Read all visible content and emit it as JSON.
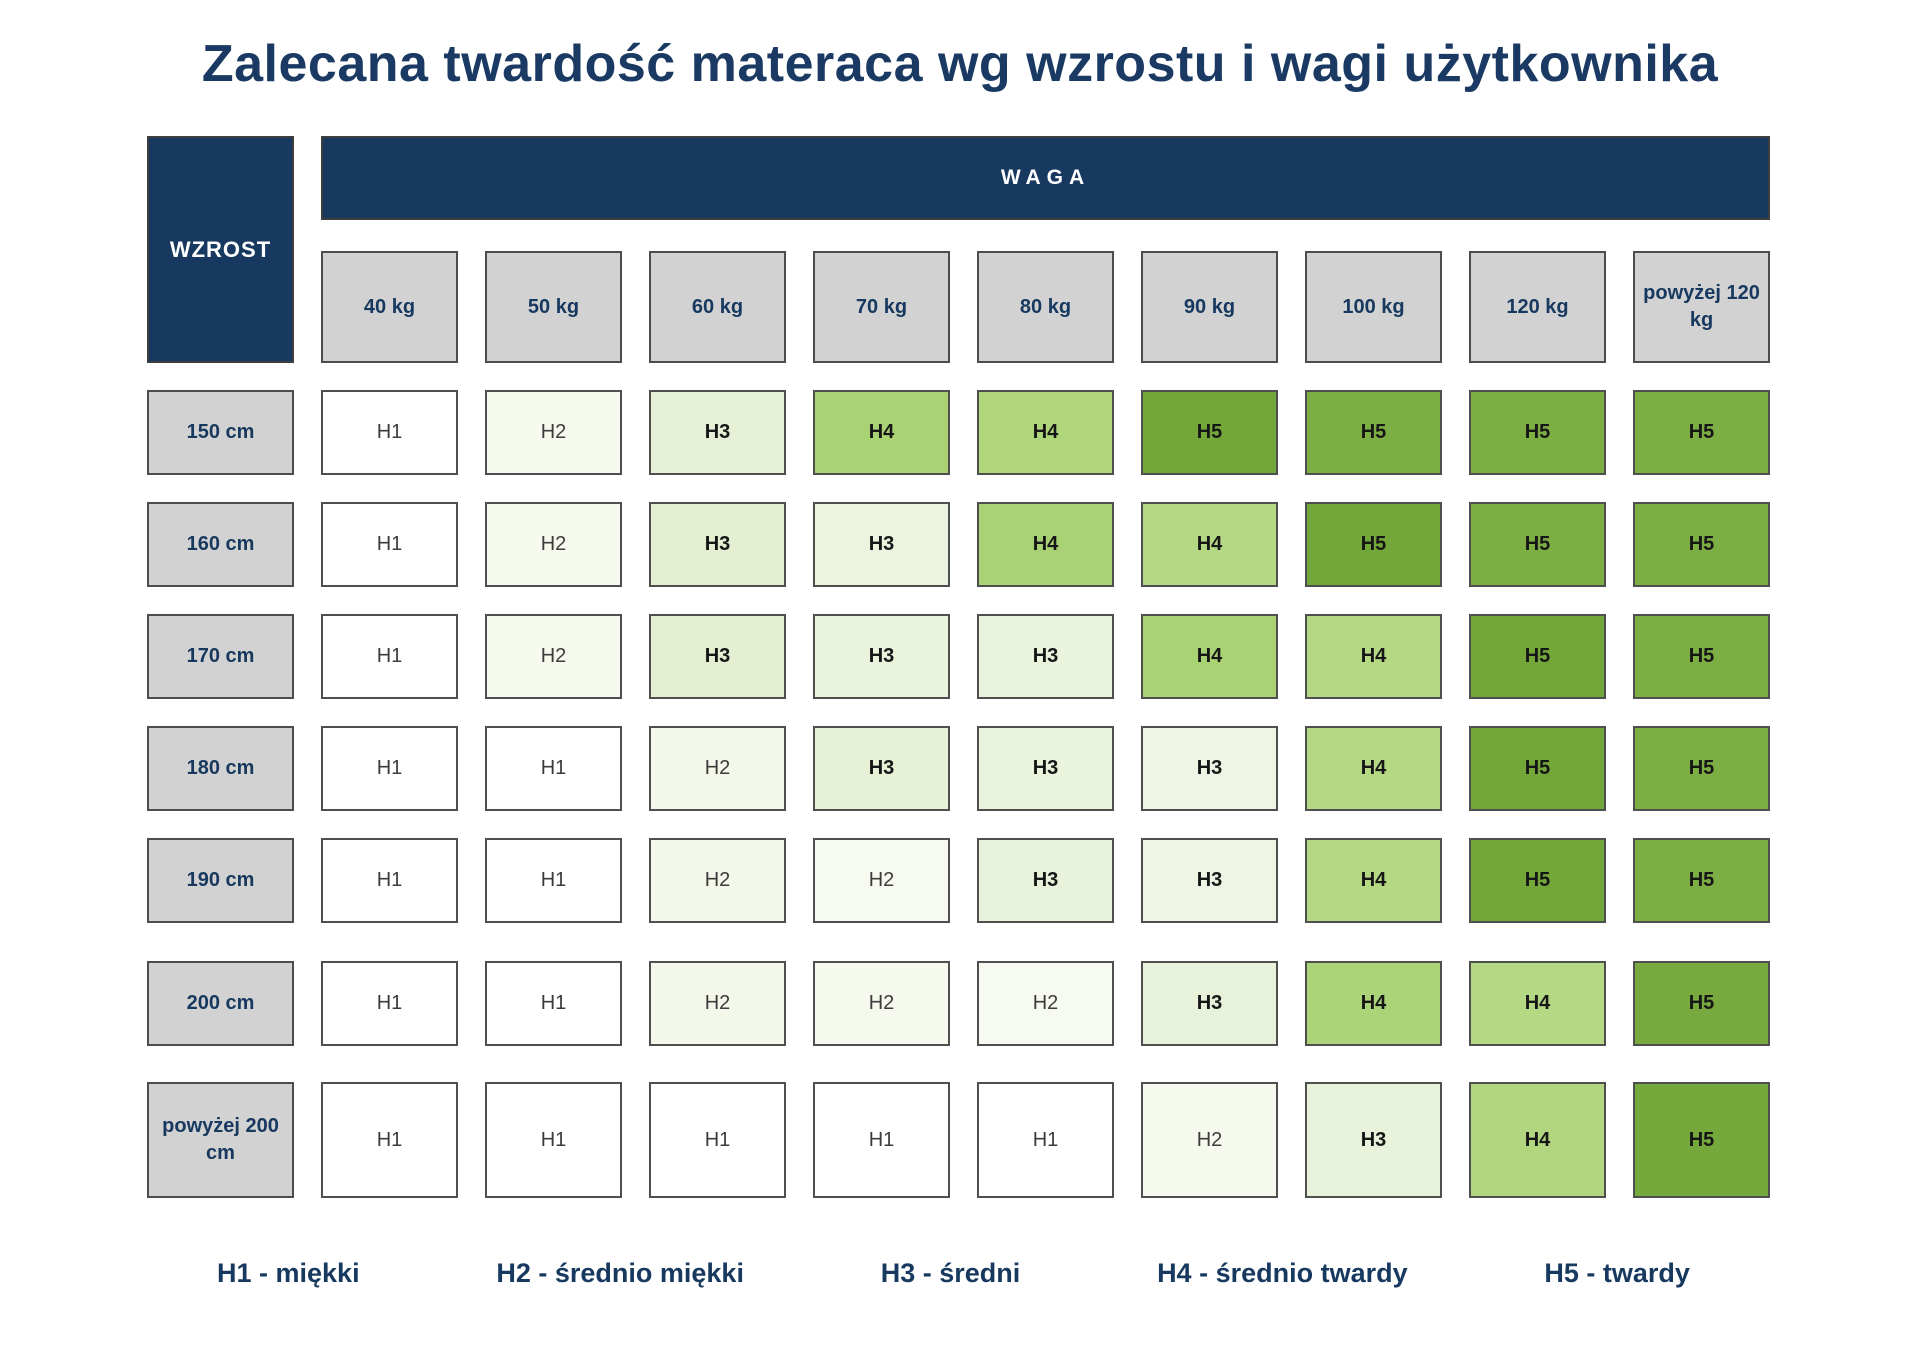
{
  "title": "Zalecana twardość materaca wg wzrostu i wagi użytkownika",
  "table": {
    "corner_label": "WZROST",
    "weight_header": "WAGA",
    "weight_columns": [
      "40 kg",
      "50 kg",
      "60 kg",
      "70 kg",
      "80 kg",
      "90 kg",
      "100 kg",
      "120 kg",
      "powyżej 120 kg"
    ],
    "rows": [
      {
        "height": "150 cm",
        "cells": [
          {
            "v": "H1",
            "c": "#ffffff"
          },
          {
            "v": "H2",
            "c": "#f6faee"
          },
          {
            "v": "H3",
            "c": "#e6f0d6"
          },
          {
            "v": "H4",
            "c": "#a9d274"
          },
          {
            "v": "H4",
            "c": "#b0d67c"
          },
          {
            "v": "H5",
            "c": "#74a73a"
          },
          {
            "v": "H5",
            "c": "#7cae44"
          },
          {
            "v": "H5",
            "c": "#7cae44"
          },
          {
            "v": "H5",
            "c": "#7cae44"
          }
        ]
      },
      {
        "height": "160 cm",
        "cells": [
          {
            "v": "H1",
            "c": "#ffffff"
          },
          {
            "v": "H2",
            "c": "#f6faee"
          },
          {
            "v": "H3",
            "c": "#e4efd2"
          },
          {
            "v": "H3",
            "c": "#ecf4e0"
          },
          {
            "v": "H4",
            "c": "#a9d274"
          },
          {
            "v": "H4",
            "c": "#b4d883"
          },
          {
            "v": "H5",
            "c": "#74a73a"
          },
          {
            "v": "H5",
            "c": "#7cae44"
          },
          {
            "v": "H5",
            "c": "#7cae44"
          }
        ]
      },
      {
        "height": "170 cm",
        "cells": [
          {
            "v": "H1",
            "c": "#ffffff"
          },
          {
            "v": "H2",
            "c": "#f6faee"
          },
          {
            "v": "H3",
            "c": "#e4efd2"
          },
          {
            "v": "H3",
            "c": "#eaf3dc"
          },
          {
            "v": "H3",
            "c": "#eaf3dc"
          },
          {
            "v": "H4",
            "c": "#a9d274"
          },
          {
            "v": "H4",
            "c": "#b4d883"
          },
          {
            "v": "H5",
            "c": "#74a73a"
          },
          {
            "v": "H5",
            "c": "#7cae44"
          }
        ]
      },
      {
        "height": "180 cm",
        "cells": [
          {
            "v": "H1",
            "c": "#ffffff"
          },
          {
            "v": "H1",
            "c": "#ffffff"
          },
          {
            "v": "H2",
            "c": "#f3f8ea"
          },
          {
            "v": "H3",
            "c": "#e6f1d6"
          },
          {
            "v": "H3",
            "c": "#eaf3dc"
          },
          {
            "v": "H3",
            "c": "#eef5e4"
          },
          {
            "v": "H4",
            "c": "#b4d883"
          },
          {
            "v": "H5",
            "c": "#74a73a"
          },
          {
            "v": "H5",
            "c": "#7cae44"
          }
        ]
      },
      {
        "height": "190 cm",
        "cells": [
          {
            "v": "H1",
            "c": "#ffffff"
          },
          {
            "v": "H1",
            "c": "#ffffff"
          },
          {
            "v": "H2",
            "c": "#f3f8ea"
          },
          {
            "v": "H2",
            "c": "#f7faf0"
          },
          {
            "v": "H3",
            "c": "#e8f2da"
          },
          {
            "v": "H3",
            "c": "#eef5e4"
          },
          {
            "v": "H4",
            "c": "#b4d883"
          },
          {
            "v": "H5",
            "c": "#74a73a"
          },
          {
            "v": "H5",
            "c": "#7cae44"
          }
        ]
      },
      {
        "height": "200 cm",
        "cells": [
          {
            "v": "H1",
            "c": "#ffffff"
          },
          {
            "v": "H1",
            "c": "#ffffff"
          },
          {
            "v": "H2",
            "c": "#f3f8ea"
          },
          {
            "v": "H2",
            "c": "#f5f9ee"
          },
          {
            "v": "H2",
            "c": "#f7faf0"
          },
          {
            "v": "H3",
            "c": "#e8f2da"
          },
          {
            "v": "H4",
            "c": "#abd377"
          },
          {
            "v": "H4",
            "c": "#b4d883"
          },
          {
            "v": "H5",
            "c": "#78a93e"
          }
        ]
      },
      {
        "height": "powyżej 200 cm",
        "cells": [
          {
            "v": "H1",
            "c": "#ffffff"
          },
          {
            "v": "H1",
            "c": "#ffffff"
          },
          {
            "v": "H1",
            "c": "#ffffff"
          },
          {
            "v": "H1",
            "c": "#ffffff"
          },
          {
            "v": "H1",
            "c": "#ffffff"
          },
          {
            "v": "H2",
            "c": "#f5f9ee"
          },
          {
            "v": "H3",
            "c": "#e8f2da"
          },
          {
            "v": "H4",
            "c": "#b2d680"
          },
          {
            "v": "H5",
            "c": "#76a93c"
          }
        ]
      }
    ]
  },
  "legend": {
    "items": [
      "H1 - miękki",
      "H2 - średnio miękki",
      "H3 - średni",
      "H4 - średnio twardy",
      "H5 - twardy"
    ]
  },
  "colors": {
    "navy": "#17395f",
    "title_navy": "#1b3a63",
    "header_gray": "#d2d2d2",
    "border_gray": "#4d4d4d",
    "h4_green": "#a9d274",
    "h5_green": "#74a73a"
  },
  "chart_data": {
    "type": "heatmap",
    "title": "Zalecana twardość materaca wg wzrostu i wagi użytkownika",
    "x_label": "WAGA",
    "y_label": "WZROST",
    "x_categories": [
      "40 kg",
      "50 kg",
      "60 kg",
      "70 kg",
      "80 kg",
      "90 kg",
      "100 kg",
      "120 kg",
      "powyżej 120 kg"
    ],
    "y_categories": [
      "150 cm",
      "160 cm",
      "170 cm",
      "180 cm",
      "190 cm",
      "200 cm",
      "powyżej 200 cm"
    ],
    "values": [
      [
        "H1",
        "H2",
        "H3",
        "H4",
        "H4",
        "H5",
        "H5",
        "H5",
        "H5"
      ],
      [
        "H1",
        "H2",
        "H3",
        "H3",
        "H4",
        "H4",
        "H5",
        "H5",
        "H5"
      ],
      [
        "H1",
        "H2",
        "H3",
        "H3",
        "H3",
        "H4",
        "H4",
        "H5",
        "H5"
      ],
      [
        "H1",
        "H1",
        "H2",
        "H3",
        "H3",
        "H3",
        "H4",
        "H5",
        "H5"
      ],
      [
        "H1",
        "H1",
        "H2",
        "H2",
        "H3",
        "H3",
        "H4",
        "H5",
        "H5"
      ],
      [
        "H1",
        "H1",
        "H2",
        "H2",
        "H2",
        "H3",
        "H4",
        "H4",
        "H5"
      ],
      [
        "H1",
        "H1",
        "H1",
        "H1",
        "H1",
        "H2",
        "H3",
        "H4",
        "H5"
      ]
    ],
    "legend": [
      "H1 - miękki",
      "H2 - średnio miękki",
      "H3 - średni",
      "H4 - średnio twardy",
      "H5 - twardy"
    ],
    "value_scale": "H1 (miękki/soft, white) → H5 (twardy/hard, dark green)"
  }
}
